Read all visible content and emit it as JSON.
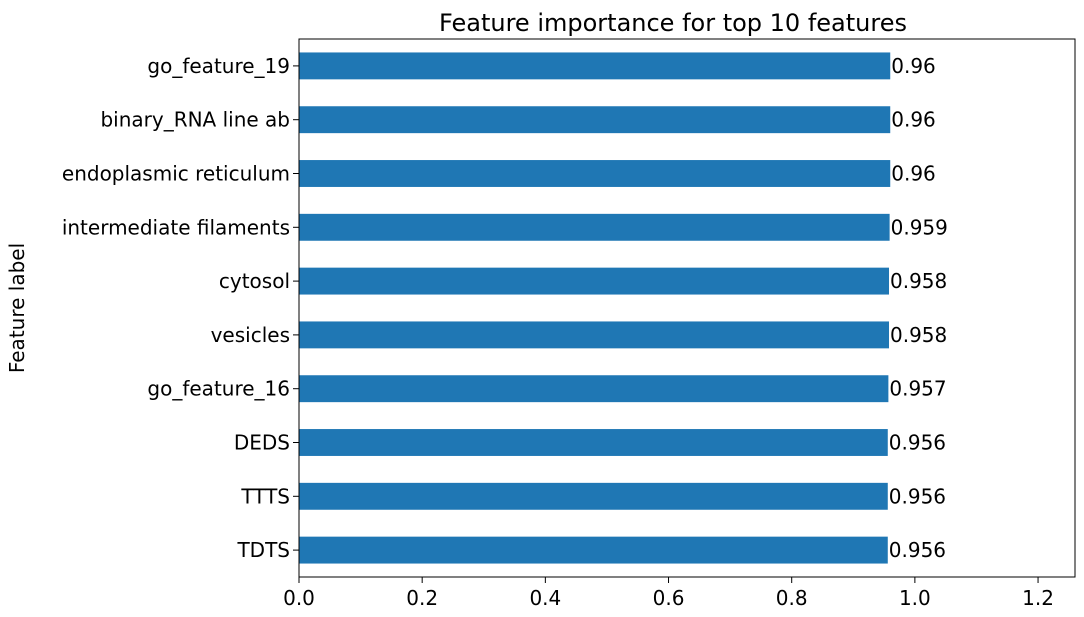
{
  "chart_data": {
    "type": "bar",
    "orientation": "horizontal",
    "title": "Feature importance for top 10 features",
    "xlabel": "",
    "ylabel": "Feature label",
    "xlim": [
      0,
      1.26
    ],
    "xticks": [
      0.0,
      0.2,
      0.4,
      0.6,
      0.8,
      1.0,
      1.2
    ],
    "xtick_labels": [
      "0.0",
      "0.2",
      "0.4",
      "0.6",
      "0.8",
      "1.0",
      "1.2"
    ],
    "grid": false,
    "bar_color": "#1f77b4",
    "bars": [
      {
        "label": "go_feature_19",
        "value": 0.96,
        "value_label": "0.96"
      },
      {
        "label": "binary_RNA line ab",
        "value": 0.96,
        "value_label": "0.96"
      },
      {
        "label": "endoplasmic reticulum",
        "value": 0.96,
        "value_label": "0.96"
      },
      {
        "label": "intermediate filaments",
        "value": 0.959,
        "value_label": "0.959"
      },
      {
        "label": "cytosol",
        "value": 0.958,
        "value_label": "0.958"
      },
      {
        "label": "vesicles",
        "value": 0.958,
        "value_label": "0.958"
      },
      {
        "label": "go_feature_16",
        "value": 0.957,
        "value_label": "0.957"
      },
      {
        "label": "DEDS",
        "value": 0.956,
        "value_label": "0.956"
      },
      {
        "label": "TTTS",
        "value": 0.956,
        "value_label": "0.956"
      },
      {
        "label": "TDTS",
        "value": 0.956,
        "value_label": "0.956"
      }
    ]
  }
}
